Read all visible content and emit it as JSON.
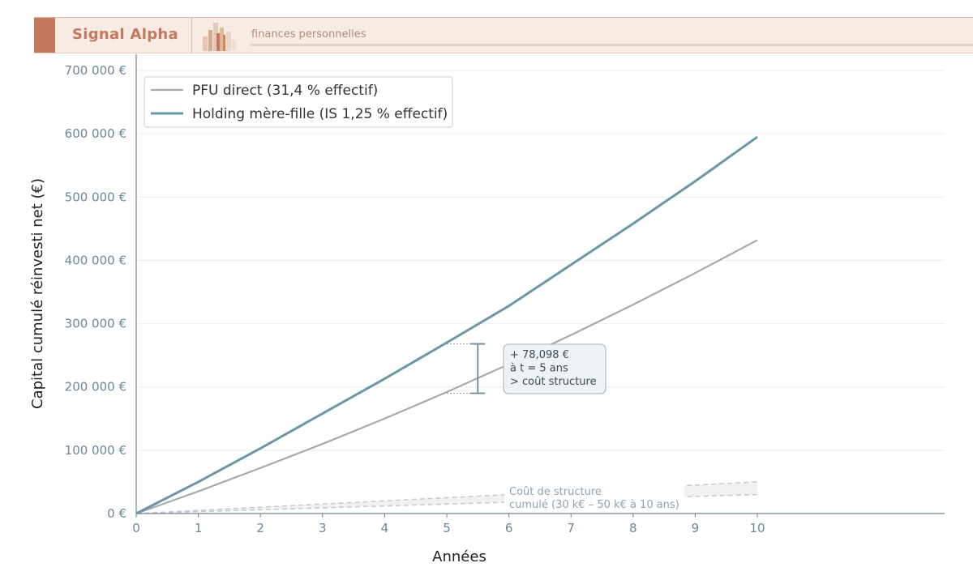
{
  "header": {
    "brand": "Signal Alpha",
    "tagline": "finances personnelles"
  },
  "colors": {
    "accent": "#c4785c",
    "holding": "#6a97a6",
    "pfu": "#a9a9a9",
    "axis": "#6e8796"
  },
  "chart_data": {
    "type": "line",
    "xlabel": "Années",
    "ylabel": "Capital cumulé réinvesti net (€)",
    "xlim": [
      0,
      13
    ],
    "ylim": [
      0,
      700000
    ],
    "x_ticks": [
      "0",
      "1",
      "2",
      "3",
      "4",
      "5",
      "6",
      "7",
      "8",
      "9",
      "10"
    ],
    "y_ticks": [
      "0 €",
      "100 000 €",
      "200 000 €",
      "300 000 €",
      "400 000 €",
      "500 000 €",
      "600 000 €",
      "700 000 €"
    ],
    "grid": true,
    "legend_position": "top-left",
    "x": [
      0,
      1,
      2,
      3,
      4,
      5,
      6,
      7,
      8,
      9,
      10
    ],
    "series": [
      {
        "name": "PFU direct (31,4 % effectif)",
        "color": "#a9a9a9",
        "values": [
          0,
          35000,
          72000,
          110000,
          150000,
          192000,
          236000,
          282000,
          330000,
          380000,
          432000
        ]
      },
      {
        "name": "Holding mère-fille (IS 1,25 % effectif)",
        "color": "#6a97a6",
        "values": [
          0,
          50000,
          103000,
          158000,
          213000,
          270000,
          328000,
          393000,
          458000,
          525000,
          595000
        ]
      }
    ],
    "cost_band": {
      "x": [
        0,
        10
      ],
      "low": [
        0,
        30000
      ],
      "high": [
        0,
        50000
      ]
    },
    "annotations": {
      "gap": {
        "x": 5.5,
        "y_low": 190000,
        "y_high": 268000,
        "lines": [
          "+ 78,098 €",
          "à t = 5 ans",
          "> coût structure"
        ]
      },
      "cost": {
        "lines": [
          "Coût de structure",
          "cumulé (30 k€ – 50 k€ à 10 ans)"
        ]
      }
    }
  }
}
